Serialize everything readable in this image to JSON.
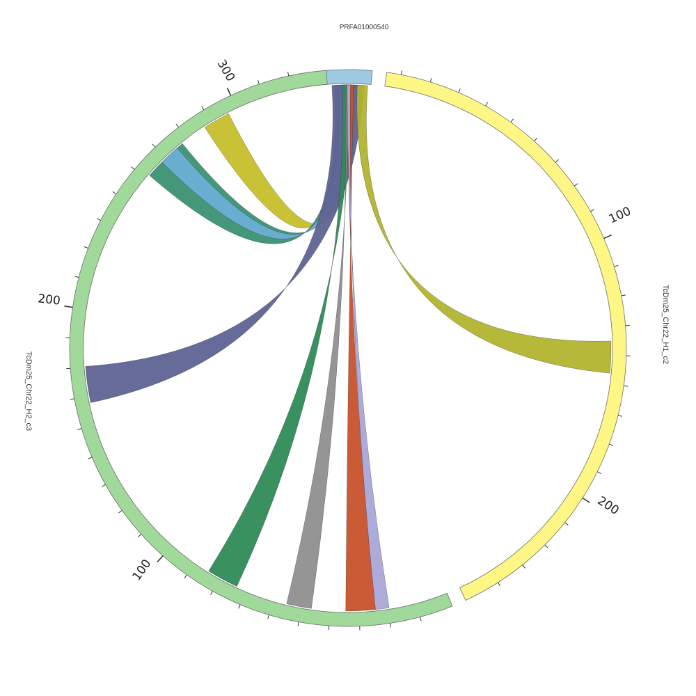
{
  "contigs": [
    {
      "name": "PRFA01000540",
      "color": "#9ecae1",
      "length": 10
    },
    {
      "name": "TcDm25_Chr22_H1_c2",
      "color": "#fff785",
      "length": 237
    },
    {
      "name": "TcDm25_Chr22_H2_c3",
      "color": "#a1d99b",
      "length": 330
    }
  ],
  "tick_labels": {
    "TcDm25_Chr22_H1_c2": [
      "100",
      "200"
    ],
    "TcDm25_Chr22_H2_c3": [
      "100",
      "200",
      "300"
    ]
  },
  "ribbons": [
    {
      "source": "PRFA01000540",
      "target": "TcDm25_Chr22_H2_c3",
      "color": "#c6bf2b"
    },
    {
      "source": "PRFA01000540",
      "target": "TcDm25_Chr22_H2_c3",
      "color": "#3a9171"
    },
    {
      "source": "PRFA01000540",
      "target": "TcDm25_Chr22_H2_c3",
      "color": "#6baed6"
    },
    {
      "source": "PRFA01000540",
      "target": "TcDm25_Chr22_H2_c3",
      "color": "#5f6394"
    },
    {
      "source": "PRFA01000540",
      "target": "TcDm25_Chr22_H2_c3",
      "color": "#2e8b57"
    },
    {
      "source": "PRFA01000540",
      "target": "TcDm25_Chr22_H2_c3",
      "color": "#8f8f8f"
    },
    {
      "source": "PRFA01000540",
      "target": "TcDm25_Chr22_H2_c3",
      "color": "#c8522b"
    },
    {
      "source": "PRFA01000540",
      "target": "TcDm25_Chr22_H2_c3",
      "color": "#a9a6d8"
    },
    {
      "source": "PRFA01000540",
      "target": "TcDm25_Chr22_H1_c2",
      "color": "#b2b42e"
    }
  ]
}
